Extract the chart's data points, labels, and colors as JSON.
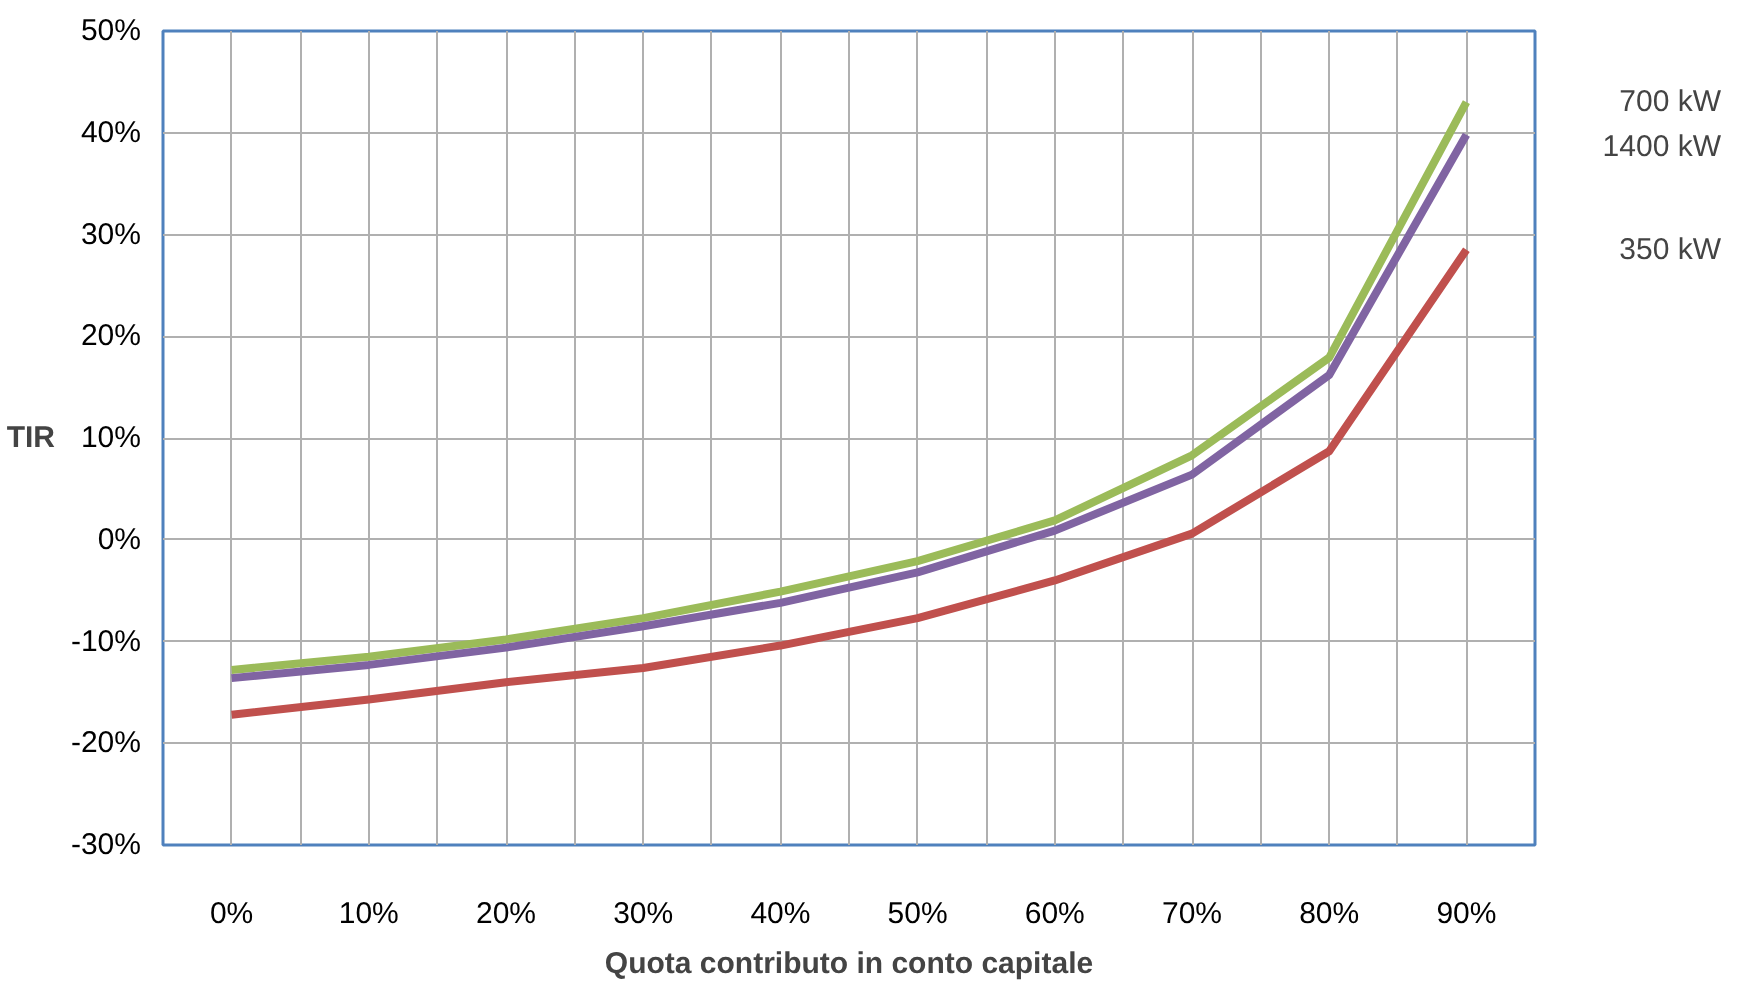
{
  "chart_data": {
    "type": "line",
    "xlabel": "Quota contributo in conto capitale",
    "ylabel": "TIR",
    "categories": [
      "0%",
      "10%",
      "20%",
      "30%",
      "40%",
      "50%",
      "60%",
      "70%",
      "80%",
      "90%"
    ],
    "series": [
      {
        "name": "700 kW",
        "color": "#9bbb59",
        "values": [
          -12.8,
          -11.5,
          -9.8,
          -7.7,
          -5.1,
          -2.1,
          1.9,
          8.3,
          17.9,
          43
        ]
      },
      {
        "name": "1400 kW",
        "color": "#8064a2",
        "values": [
          -13.6,
          -12.3,
          -10.6,
          -8.5,
          -6.2,
          -3.2,
          0.9,
          6.4,
          16.2,
          39.8
        ]
      },
      {
        "name": "350 kW",
        "color": "#c0504d",
        "values": [
          -17.2,
          -15.7,
          -14.0,
          -12.6,
          -10.4,
          -7.7,
          -4.0,
          0.6,
          8.7,
          28.5
        ]
      }
    ],
    "ylim": [
      -30,
      50
    ],
    "yticks": [
      {
        "value": -30,
        "label": "-30%"
      },
      {
        "value": -20,
        "label": "-20%"
      },
      {
        "value": -10,
        "label": "-10%"
      },
      {
        "value": 0,
        "label": "0%"
      },
      {
        "value": 10,
        "label": "10%"
      },
      {
        "value": 20,
        "label": "20%"
      },
      {
        "value": 30,
        "label": "30%"
      },
      {
        "value": 40,
        "label": "40%"
      },
      {
        "value": 50,
        "label": "50%"
      }
    ],
    "grid": true,
    "line_style": "solid",
    "marker": "none"
  }
}
